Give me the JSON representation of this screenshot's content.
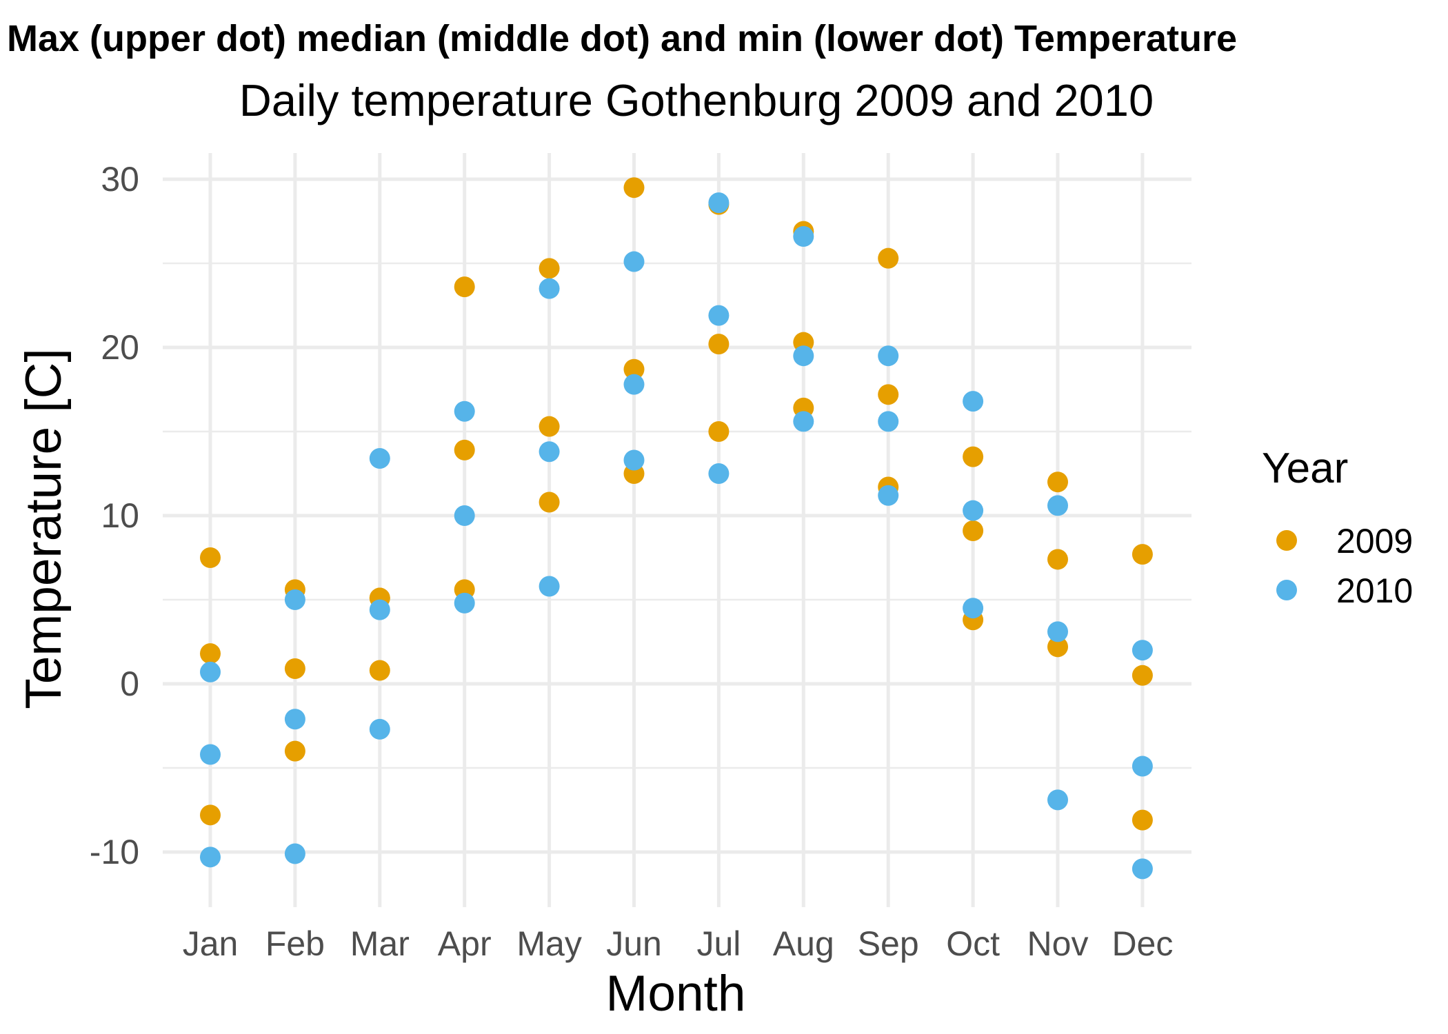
{
  "chart_data": {
    "type": "scatter",
    "title": "Max (upper dot) median (middle dot) and min (lower dot) Temperature",
    "subtitle": "Daily temperature Gothenburg 2009 and 2010",
    "xlabel": "Month",
    "ylabel": "Temperature [C]",
    "categories": [
      "Jan",
      "Feb",
      "Mar",
      "Apr",
      "May",
      "Jun",
      "Jul",
      "Aug",
      "Sep",
      "Oct",
      "Nov",
      "Dec"
    ],
    "ylim": [
      -12,
      30.5
    ],
    "yticks": [
      -10,
      0,
      10,
      20,
      30
    ],
    "ytick_labels": [
      "-10",
      "0",
      "10",
      "20",
      "30"
    ],
    "grid": true,
    "legend": {
      "title": "Year",
      "position": "right"
    },
    "series": [
      {
        "name": "2009",
        "color": "#E69F00",
        "max": [
          7.5,
          5.6,
          5.1,
          23.6,
          24.7,
          29.5,
          28.5,
          26.9,
          25.3,
          13.5,
          12.0,
          7.7
        ],
        "median": [
          1.8,
          0.9,
          0.8,
          13.9,
          15.3,
          18.7,
          20.2,
          20.3,
          17.2,
          9.1,
          7.4,
          0.5
        ],
        "min": [
          -7.8,
          -4.0,
          5.1,
          5.6,
          10.8,
          12.5,
          15.0,
          16.4,
          11.7,
          3.8,
          2.2,
          -8.1
        ]
      },
      {
        "name": "2010",
        "color": "#56B4E9",
        "max": [
          0.7,
          5.0,
          13.4,
          16.2,
          23.5,
          25.1,
          28.6,
          26.6,
          19.5,
          16.8,
          10.6,
          2.0
        ],
        "median": [
          -4.2,
          -2.1,
          4.4,
          10.0,
          13.8,
          17.8,
          21.9,
          19.5,
          15.6,
          10.3,
          3.1,
          -4.9
        ],
        "min": [
          -10.3,
          -10.1,
          -2.7,
          4.8,
          5.8,
          13.3,
          12.5,
          15.6,
          11.2,
          4.5,
          -6.9,
          -11.0
        ]
      }
    ]
  }
}
